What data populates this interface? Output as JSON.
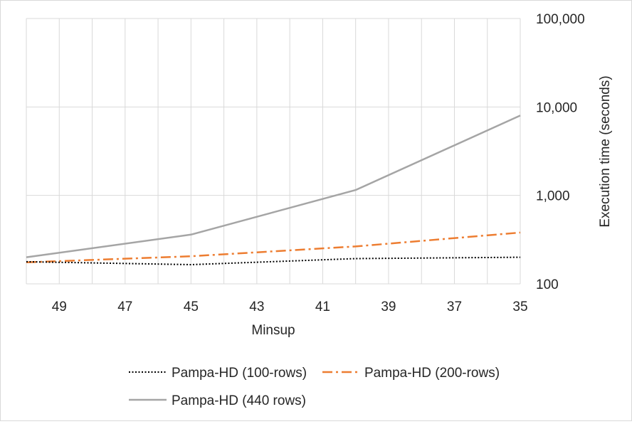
{
  "chart_data": {
    "type": "line",
    "title": "",
    "xlabel": "Minsup",
    "ylabel": "Execution time (seconds)",
    "x": [
      50,
      49,
      48,
      47,
      46,
      45,
      44,
      43,
      42,
      41,
      40,
      39,
      38,
      37,
      36,
      35
    ],
    "x_ticks": [
      49,
      47,
      45,
      43,
      41,
      39,
      37,
      35
    ],
    "x_direction": "descending",
    "y_scale": "log",
    "ylim": [
      100,
      100000
    ],
    "y_ticks": [
      100,
      1000,
      10000,
      100000
    ],
    "y_tick_labels": [
      "100",
      "1,000",
      "10,000",
      "100,000"
    ],
    "y_axis_side": "right",
    "grid": true,
    "legend": "bottom",
    "series": [
      {
        "name": "Pampa-HD (100-rows)",
        "style": "dotted",
        "color": "#000000",
        "points": [
          [
            50,
            178
          ],
          [
            45,
            165
          ],
          [
            40,
            193
          ],
          [
            35,
            200
          ]
        ]
      },
      {
        "name": "Pampa-HD (200-rows)",
        "style": "dash-dot",
        "color": "#ed7d31",
        "points": [
          [
            50,
            175
          ],
          [
            45,
            205
          ],
          [
            40,
            265
          ],
          [
            35,
            380
          ]
        ]
      },
      {
        "name": "Pampa-HD (440 rows)",
        "style": "solid",
        "color": "#a5a5a5",
        "points": [
          [
            50,
            200
          ],
          [
            45,
            360
          ],
          [
            40,
            1150
          ],
          [
            35,
            8000
          ]
        ]
      }
    ]
  }
}
